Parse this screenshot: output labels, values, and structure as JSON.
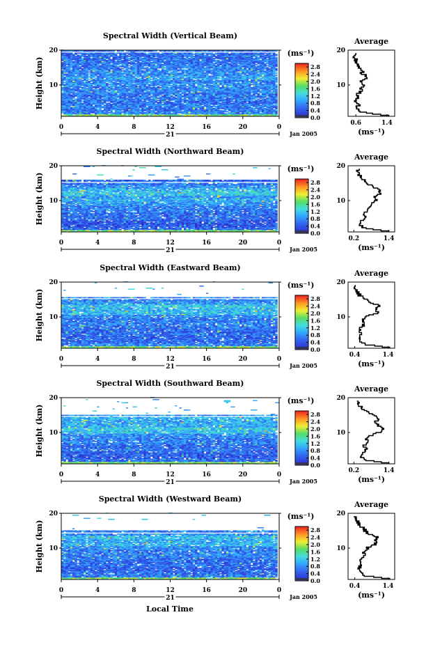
{
  "figure": {
    "xlabel": "Local Time",
    "ylabel": "Height (km)",
    "date_label": "Jan 2005",
    "day_label": "21",
    "colorbar_unit": "(ms⁻¹)",
    "avg_title": "Average",
    "avg_unit": "(ms⁻¹)"
  },
  "chart_data": [
    {
      "type": "heatmap",
      "title": "Spectral Width (Vertical Beam)",
      "xlabel": "",
      "ylabel": "Height (km)",
      "x_ticks": [
        "0",
        "4",
        "8",
        "12",
        "16",
        "20",
        "0"
      ],
      "y_ticks": [
        "20",
        "10"
      ],
      "xlim": [
        0,
        24
      ],
      "ylim": [
        1,
        20
      ],
      "colorbar": {
        "ticks": [
          "2.8",
          "2.4",
          "2.0",
          "1.6",
          "1.2",
          "0.8",
          "0.4",
          "0.0"
        ],
        "range": [
          0,
          3.0
        ]
      },
      "average": {
        "title": "Average",
        "xticks": [
          "0.6",
          "1.4"
        ],
        "xlim": [
          0.4,
          1.6
        ],
        "heights": [
          1,
          2,
          3,
          4,
          5,
          6,
          7,
          8,
          9,
          10,
          11,
          12,
          13,
          14,
          15,
          16,
          17,
          18,
          19
        ],
        "values": [
          1.45,
          0.75,
          0.62,
          0.68,
          0.58,
          0.66,
          0.62,
          0.75,
          0.7,
          0.82,
          0.72,
          0.9,
          0.78,
          0.74,
          0.66,
          0.64,
          0.6,
          0.57,
          0.6
        ]
      }
    },
    {
      "type": "heatmap",
      "title": "Spectral Width (Northward Beam)",
      "xlabel": "",
      "ylabel": "Height (km)",
      "x_ticks": [
        "0",
        "4",
        "8",
        "12",
        "16",
        "20",
        "0"
      ],
      "y_ticks": [
        "20",
        "10"
      ],
      "xlim": [
        0,
        24
      ],
      "ylim": [
        1,
        20
      ],
      "colorbar": {
        "ticks": [
          "2.8",
          "2.4",
          "2.0",
          "1.6",
          "1.2",
          "0.8",
          "0.4",
          "0.0"
        ],
        "range": [
          0,
          3.0
        ]
      },
      "average": {
        "title": "Average",
        "xticks": [
          "0.2",
          "1.4"
        ],
        "xlim": [
          0.0,
          1.6
        ],
        "heights": [
          1,
          2,
          3,
          4,
          5,
          6,
          7,
          8,
          9,
          10,
          11,
          12,
          13,
          14,
          15,
          16,
          17,
          18,
          19
        ],
        "values": [
          1.4,
          0.5,
          0.4,
          0.45,
          0.6,
          0.55,
          0.65,
          0.7,
          0.85,
          1.0,
          0.9,
          1.15,
          1.05,
          0.8,
          0.65,
          0.5,
          0.4,
          0.35,
          0.32
        ]
      }
    },
    {
      "type": "heatmap",
      "title": "Spectral Width (Eastward Beam)",
      "xlabel": "",
      "ylabel": "Height (km)",
      "x_ticks": [
        "0",
        "4",
        "8",
        "12",
        "16",
        "20",
        "0"
      ],
      "y_ticks": [
        "20",
        "10"
      ],
      "xlim": [
        0,
        24
      ],
      "ylim": [
        1,
        20
      ],
      "colorbar": {
        "ticks": [
          "2.8",
          "2.4",
          "2.0",
          "1.6",
          "1.2",
          "0.8",
          "0.4",
          "0.0"
        ],
        "range": [
          0,
          3.0
        ]
      },
      "average": {
        "title": "Average",
        "xticks": [
          "0.4",
          "1.4"
        ],
        "xlim": [
          0.2,
          1.6
        ],
        "heights": [
          1,
          2,
          3,
          4,
          5,
          6,
          7,
          8,
          9,
          10,
          11,
          12,
          13,
          14,
          15,
          16,
          17,
          18,
          19
        ],
        "values": [
          1.45,
          0.7,
          0.55,
          0.5,
          0.58,
          0.55,
          0.62,
          0.72,
          0.65,
          0.78,
          1.1,
          1.05,
          1.15,
          0.85,
          0.7,
          0.55,
          0.48,
          0.42,
          0.4
        ]
      }
    },
    {
      "type": "heatmap",
      "title": "Spectral Width (Southward Beam)",
      "xlabel": "",
      "ylabel": "Height (km)",
      "x_ticks": [
        "0",
        "4",
        "8",
        "12",
        "16",
        "20",
        "0"
      ],
      "y_ticks": [
        "20",
        "10"
      ],
      "xlim": [
        0,
        24
      ],
      "ylim": [
        1,
        20
      ],
      "colorbar": {
        "ticks": [
          "2.8",
          "2.4",
          "2.0",
          "1.6",
          "1.2",
          "0.8",
          "0.4",
          "0.0"
        ],
        "range": [
          0,
          3.0
        ]
      },
      "average": {
        "title": "Average",
        "xticks": [
          "0.2",
          "1.4"
        ],
        "xlim": [
          0.0,
          1.6
        ],
        "heights": [
          1,
          2,
          3,
          4,
          5,
          6,
          7,
          8,
          9,
          10,
          11,
          12,
          13,
          14,
          15,
          16,
          17,
          18,
          19
        ],
        "values": [
          1.4,
          0.55,
          0.45,
          0.5,
          0.62,
          0.55,
          0.7,
          0.65,
          0.8,
          1.1,
          1.2,
          1.0,
          0.95,
          1.05,
          0.8,
          0.65,
          0.45,
          0.35,
          0.32
        ]
      }
    },
    {
      "type": "heatmap",
      "title": "Spectral Width (Westward Beam)",
      "xlabel": "Local Time",
      "ylabel": "Height (km)",
      "x_ticks": [
        "0",
        "4",
        "8",
        "12",
        "16",
        "20",
        "0"
      ],
      "y_ticks": [
        "20",
        "10"
      ],
      "xlim": [
        0,
        24
      ],
      "ylim": [
        1,
        20
      ],
      "colorbar": {
        "ticks": [
          "2.8",
          "2.4",
          "2.0",
          "1.6",
          "1.2",
          "0.8",
          "0.4",
          "0.0"
        ],
        "range": [
          0,
          3.0
        ]
      },
      "average": {
        "title": "Average",
        "xticks": [
          "0.4",
          "1.4"
        ],
        "xlim": [
          0.2,
          1.6
        ],
        "heights": [
          1,
          2,
          3,
          4,
          5,
          6,
          7,
          8,
          9,
          10,
          11,
          12,
          13,
          14,
          15,
          16,
          17,
          18,
          19
        ],
        "values": [
          1.45,
          0.65,
          0.55,
          0.5,
          0.6,
          0.55,
          0.65,
          0.7,
          0.68,
          0.8,
          1.05,
          1.0,
          1.1,
          0.8,
          0.7,
          0.6,
          0.5,
          0.45,
          0.42
        ]
      }
    }
  ]
}
